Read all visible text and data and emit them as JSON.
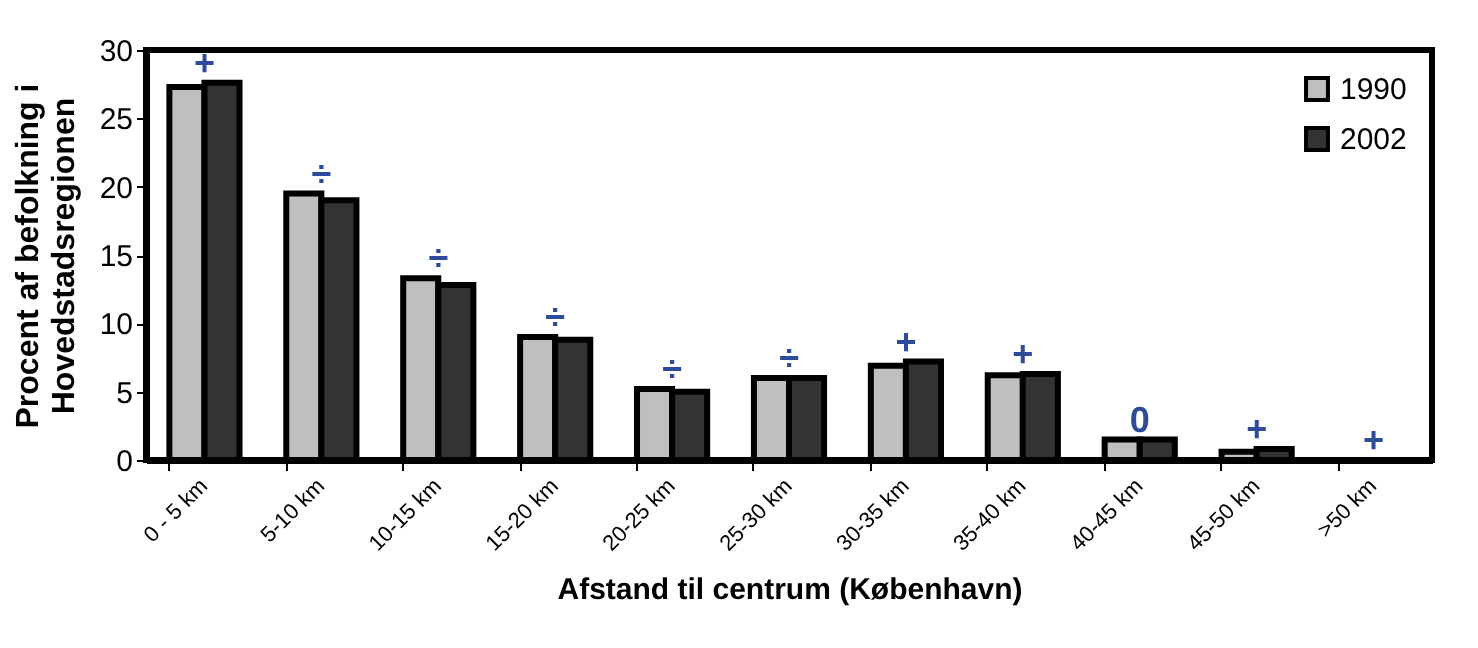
{
  "chart_data": {
    "type": "bar",
    "xlabel": "Afstand til centrum (København)",
    "ylabel": "Procent af befolkning i\nHovedstadsregionen",
    "categories": [
      "0 - 5 km",
      "5-10 km",
      "10-15 km",
      "15-20 km",
      "20-25 km",
      "25-30 km",
      "30-35 km",
      "35-40 km",
      "40-45 km",
      "45-50 km",
      ">50 km"
    ],
    "series": [
      {
        "name": "1990",
        "color": "#bfbfbf",
        "values": [
          27.3,
          19.5,
          13.3,
          9.0,
          5.2,
          6.0,
          6.9,
          6.2,
          1.5,
          0.6,
          0
        ]
      },
      {
        "name": "2002",
        "color": "#333333",
        "values": [
          27.6,
          19.0,
          12.8,
          8.8,
          5.0,
          6.0,
          7.2,
          6.3,
          1.5,
          0.8,
          0
        ]
      }
    ],
    "ylim": [
      0,
      30
    ],
    "yticks": [
      0,
      5,
      10,
      15,
      20,
      25,
      30
    ],
    "grid": false,
    "legend": "top right",
    "annotations": [
      "+",
      "÷",
      "÷",
      "÷",
      "÷",
      "÷",
      "+",
      "+",
      "0",
      "+",
      "+"
    ]
  }
}
